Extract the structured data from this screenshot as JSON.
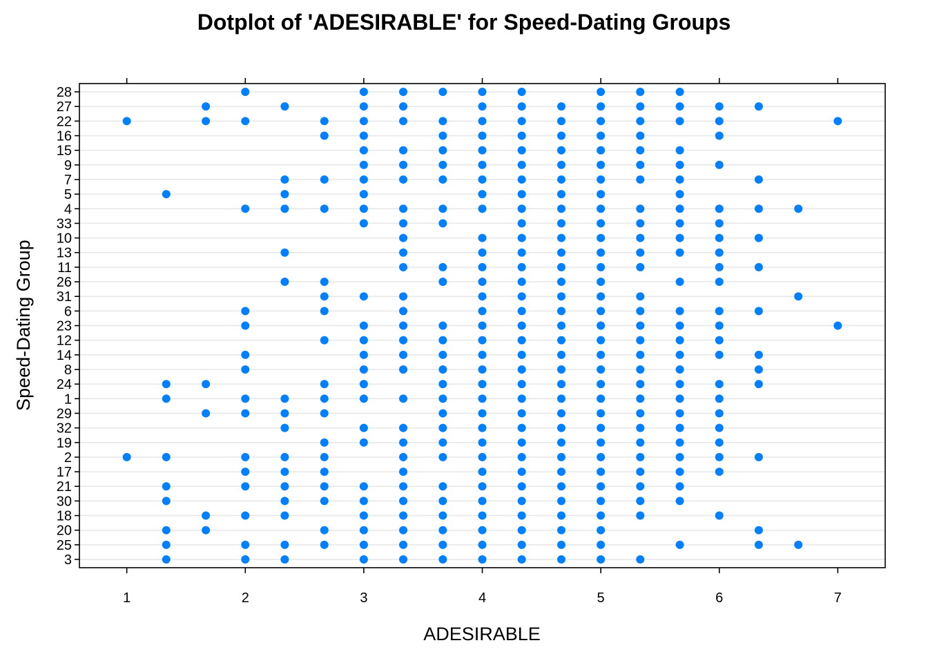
{
  "chart_data": {
    "type": "scatter",
    "title": "Dotplot of 'ADESIRABLE' for Speed-Dating Groups",
    "xlabel": "ADESIRABLE",
    "ylabel": "Speed-Dating Group",
    "xlim": [
      0.6,
      7.4
    ],
    "xticks": [
      1,
      2,
      3,
      4,
      5,
      6,
      7
    ],
    "x_tick_labels": [
      "1",
      "2",
      "3",
      "4",
      "5",
      "6",
      "7"
    ],
    "grid": "horizontal",
    "color": "#0080ff",
    "groups": [
      "3",
      "25",
      "20",
      "18",
      "30",
      "21",
      "17",
      "2",
      "19",
      "32",
      "29",
      "1",
      "24",
      "8",
      "14",
      "12",
      "23",
      "6",
      "31",
      "26",
      "11",
      "13",
      "10",
      "33",
      "4",
      "5",
      "7",
      "9",
      "15",
      "16",
      "22",
      "27",
      "28"
    ],
    "series": [
      {
        "group": "28",
        "values": [
          2,
          3,
          3.333,
          3.667,
          4,
          4.333,
          5,
          5.333,
          5.667
        ]
      },
      {
        "group": "27",
        "values": [
          1.667,
          2.333,
          3,
          3.333,
          4,
          4.333,
          4.667,
          5,
          5.333,
          5.667,
          6,
          6.333
        ]
      },
      {
        "group": "22",
        "values": [
          1,
          1.667,
          2,
          2.667,
          3,
          3.333,
          3.667,
          4,
          4.333,
          4.667,
          5,
          5.333,
          5.667,
          6,
          7
        ]
      },
      {
        "group": "16",
        "values": [
          2.667,
          3,
          3.667,
          4,
          4.333,
          4.667,
          5,
          5.333,
          6
        ]
      },
      {
        "group": "15",
        "values": [
          3,
          3.333,
          3.667,
          4,
          4.333,
          4.667,
          5,
          5.333,
          5.667
        ]
      },
      {
        "group": "9",
        "values": [
          3,
          3.333,
          3.667,
          4,
          4.333,
          4.667,
          5,
          5.333,
          5.667,
          6
        ]
      },
      {
        "group": "7",
        "values": [
          2.333,
          2.667,
          3,
          3.333,
          3.667,
          4,
          4.333,
          4.667,
          5,
          5.333,
          5.667,
          6.333
        ]
      },
      {
        "group": "5",
        "values": [
          1.333,
          2.333,
          3,
          4,
          4.333,
          4.667,
          5,
          5.667
        ]
      },
      {
        "group": "4",
        "values": [
          2,
          2.333,
          2.667,
          3,
          3.333,
          3.667,
          4,
          4.333,
          4.667,
          5,
          5.333,
          5.667,
          6,
          6.333,
          6.667
        ]
      },
      {
        "group": "33",
        "values": [
          3,
          3.333,
          3.667,
          4.333,
          4.667,
          5,
          5.333,
          5.667,
          6
        ]
      },
      {
        "group": "10",
        "values": [
          3.333,
          4,
          4.333,
          4.667,
          5,
          5.333,
          5.667,
          6,
          6.333
        ]
      },
      {
        "group": "13",
        "values": [
          2.333,
          3.333,
          4,
          4.333,
          4.667,
          5,
          5.333,
          5.667,
          6
        ]
      },
      {
        "group": "11",
        "values": [
          3.333,
          3.667,
          4,
          4.333,
          4.667,
          5,
          5.333,
          6,
          6.333
        ]
      },
      {
        "group": "26",
        "values": [
          2.333,
          2.667,
          3.667,
          4,
          4.333,
          4.667,
          5,
          5.667,
          6
        ]
      },
      {
        "group": "31",
        "values": [
          2.667,
          3,
          3.333,
          4,
          4.333,
          4.667,
          5,
          5.333,
          6.667
        ]
      },
      {
        "group": "6",
        "values": [
          2,
          2.667,
          3.333,
          4,
          4.333,
          4.667,
          5,
          5.333,
          5.667,
          6,
          6.333
        ]
      },
      {
        "group": "23",
        "values": [
          2,
          3,
          3.333,
          3.667,
          4,
          4.333,
          4.667,
          5,
          5.333,
          5.667,
          6,
          7
        ]
      },
      {
        "group": "12",
        "values": [
          2.667,
          3,
          3.333,
          3.667,
          4,
          4.333,
          4.667,
          5,
          5.333,
          5.667,
          6
        ]
      },
      {
        "group": "14",
        "values": [
          2,
          3,
          3.333,
          3.667,
          4,
          4.333,
          4.667,
          5,
          5.333,
          5.667,
          6,
          6.333
        ]
      },
      {
        "group": "8",
        "values": [
          2,
          3,
          3.333,
          3.667,
          4,
          4.333,
          4.667,
          5,
          5.333,
          5.667,
          6.333
        ]
      },
      {
        "group": "24",
        "values": [
          1.333,
          1.667,
          2.667,
          3,
          3.667,
          4,
          4.333,
          4.667,
          5,
          5.333,
          5.667,
          6,
          6.333
        ]
      },
      {
        "group": "1",
        "values": [
          1.333,
          2,
          2.333,
          2.667,
          3,
          3.333,
          3.667,
          4,
          4.333,
          4.667,
          5,
          5.333,
          5.667,
          6
        ]
      },
      {
        "group": "29",
        "values": [
          1.667,
          2,
          2.333,
          2.667,
          3.667,
          4,
          4.333,
          4.667,
          5,
          5.333,
          5.667,
          6
        ]
      },
      {
        "group": "32",
        "values": [
          2.333,
          3,
          3.333,
          3.667,
          4,
          4.333,
          4.667,
          5,
          5.333,
          5.667,
          6
        ]
      },
      {
        "group": "19",
        "values": [
          2.667,
          3,
          3.333,
          3.667,
          4,
          4.333,
          4.667,
          5,
          5.333,
          5.667,
          6
        ]
      },
      {
        "group": "2",
        "values": [
          1,
          1.333,
          2,
          2.333,
          2.667,
          3.333,
          3.667,
          4,
          4.333,
          4.667,
          5,
          5.333,
          5.667,
          6,
          6.333
        ]
      },
      {
        "group": "17",
        "values": [
          2,
          2.333,
          2.667,
          3.333,
          4,
          4.333,
          4.667,
          5,
          5.333,
          5.667,
          6
        ]
      },
      {
        "group": "21",
        "values": [
          1.333,
          2,
          2.333,
          2.667,
          3,
          3.333,
          3.667,
          4,
          4.333,
          4.667,
          5,
          5.333,
          5.667
        ]
      },
      {
        "group": "30",
        "values": [
          1.333,
          2.333,
          2.667,
          3,
          3.333,
          3.667,
          4,
          4.333,
          4.667,
          5,
          5.333,
          5.667
        ]
      },
      {
        "group": "18",
        "values": [
          1.667,
          2,
          2.333,
          3,
          3.333,
          3.667,
          4,
          4.333,
          4.667,
          5,
          5.333,
          6
        ]
      },
      {
        "group": "20",
        "values": [
          1.333,
          1.667,
          2.667,
          3,
          3.333,
          3.667,
          4,
          4.333,
          4.667,
          5,
          6.333
        ]
      },
      {
        "group": "25",
        "values": [
          1.333,
          2,
          2.333,
          2.667,
          3,
          3.333,
          3.667,
          4,
          4.333,
          4.667,
          5,
          5.667,
          6.333,
          6.667
        ]
      },
      {
        "group": "3",
        "values": [
          1.333,
          2,
          2.333,
          3,
          3.333,
          3.667,
          4,
          4.333,
          4.667,
          5,
          5.333
        ]
      }
    ]
  }
}
